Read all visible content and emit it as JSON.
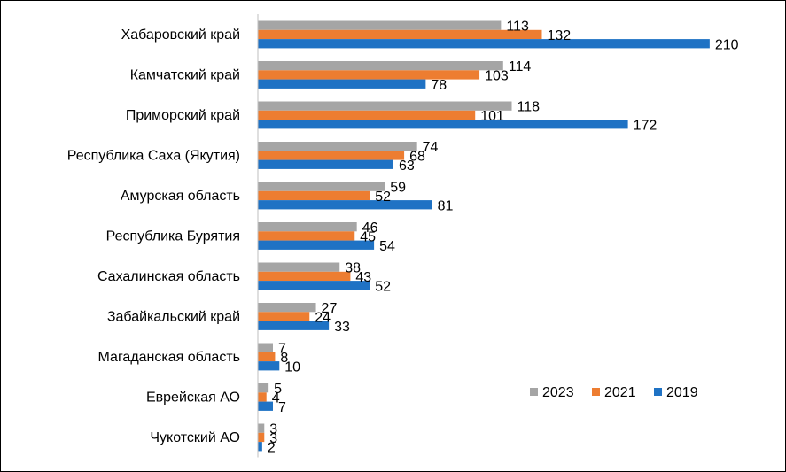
{
  "chart_data": {
    "type": "bar",
    "orientation": "horizontal",
    "title": "",
    "xlabel": "",
    "ylabel": "",
    "xlim": [
      0,
      215
    ],
    "grid": false,
    "legend_position": "bottom-right",
    "categories": [
      "Хабаровский край",
      "Камчатский край",
      "Приморский край",
      "Республика Саха (Якутия)",
      "Амурская область",
      "Республика Бурятия",
      "Сахалинская область",
      "Забайкальский край",
      "Магаданская область",
      "Еврейская АО",
      "Чукотский АО"
    ],
    "series": [
      {
        "name": "2023",
        "color": "#A5A5A5",
        "values": [
          113,
          114,
          118,
          74,
          59,
          46,
          38,
          27,
          7,
          5,
          3
        ]
      },
      {
        "name": "2021",
        "color": "#ED7D31",
        "values": [
          132,
          103,
          101,
          68,
          52,
          45,
          43,
          24,
          8,
          4,
          3
        ]
      },
      {
        "name": "2019",
        "color": "#1F72C4",
        "values": [
          210,
          78,
          172,
          63,
          81,
          54,
          52,
          33,
          10,
          7,
          2
        ]
      }
    ]
  }
}
